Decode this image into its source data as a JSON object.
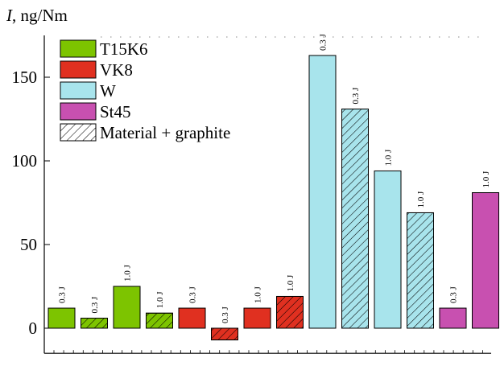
{
  "chart_data": {
    "type": "bar",
    "ylabel_italic": "I",
    "ylabel_rest": ", ng/Nm",
    "ylim": [
      -15,
      175
    ],
    "yticks": [
      0,
      50,
      100,
      150
    ],
    "grid": false,
    "legend_position": "top-left",
    "colors": {
      "T15K6": "#7dc400",
      "VK8": "#e03020",
      "W": "#a8e4ec",
      "St45": "#c850b0",
      "hatch_fill": "#ffffff"
    },
    "legend": [
      {
        "label": "T15K6",
        "material": "T15K6",
        "hatched": false
      },
      {
        "label": "VK8",
        "material": "VK8",
        "hatched": false
      },
      {
        "label": "W",
        "material": "W",
        "hatched": false
      },
      {
        "label": "St45",
        "material": "St45",
        "hatched": false
      },
      {
        "label": "Material + graphite",
        "material": "hatch_fill",
        "hatched": true
      }
    ],
    "bars": [
      {
        "material": "T15K6",
        "hatched": false,
        "value": 12,
        "label": "0.3 J"
      },
      {
        "material": "T15K6",
        "hatched": true,
        "value": 6,
        "label": "0.3 J"
      },
      {
        "material": "T15K6",
        "hatched": false,
        "value": 25,
        "label": "1.0 J"
      },
      {
        "material": "T15K6",
        "hatched": true,
        "value": 9,
        "label": "1.0 J"
      },
      {
        "material": "VK8",
        "hatched": false,
        "value": 12,
        "label": "0.3 J"
      },
      {
        "material": "VK8",
        "hatched": true,
        "value": -7,
        "label": "0.3 J"
      },
      {
        "material": "VK8",
        "hatched": false,
        "value": 12,
        "label": "1.0 J"
      },
      {
        "material": "VK8",
        "hatched": true,
        "value": 19,
        "label": "1.0 J"
      },
      {
        "material": "W",
        "hatched": false,
        "value": 163,
        "label": "0.3 J"
      },
      {
        "material": "W",
        "hatched": true,
        "value": 131,
        "label": "0.3 J"
      },
      {
        "material": "W",
        "hatched": false,
        "value": 94,
        "label": "1.0 J"
      },
      {
        "material": "W",
        "hatched": true,
        "value": 69,
        "label": "1.0 J"
      },
      {
        "material": "St45",
        "hatched": false,
        "value": 12,
        "label": "0.3 J"
      },
      {
        "material": "St45",
        "hatched": false,
        "value": 81,
        "label": "1.0 J"
      }
    ]
  }
}
